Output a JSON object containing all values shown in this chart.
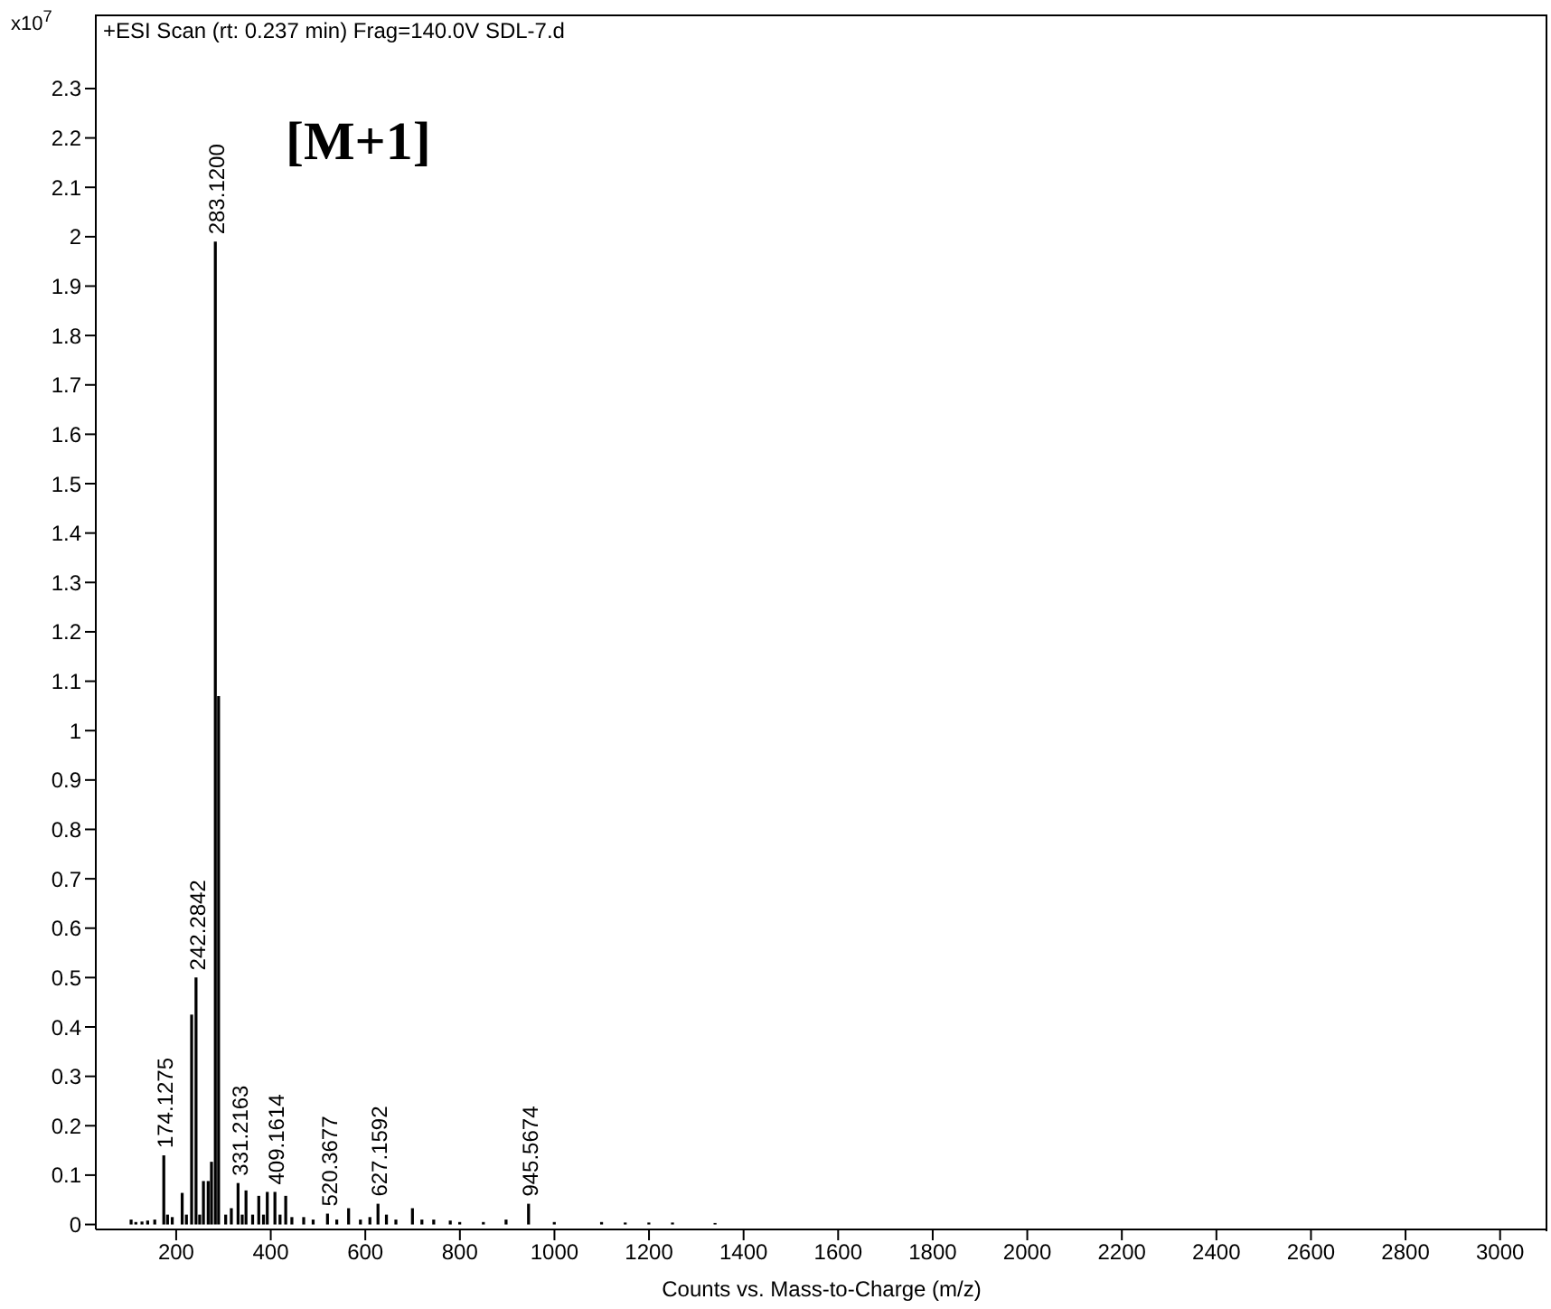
{
  "chart_data": {
    "type": "bar",
    "title": "+ESI Scan (rt: 0.237 min) Frag=140.0V SDL-7.d",
    "xlabel": "Counts vs. Mass-to-Charge (m/z)",
    "ylabel": "x10$^{7}$",
    "annotations": [
      "[M+1]",
      {
        "text": "174.1275",
        "x": 174.1275,
        "y": 0.14
      },
      {
        "text": "242.2842",
        "x": 242.2842,
        "y": 0.5
      },
      {
        "text": "283.1200",
        "x": 283.12,
        "y": 1.99
      },
      {
        "text": "331.2163",
        "x": 331.2163,
        "y": 0.084
      },
      {
        "text": "409.1614",
        "x": 409.1614,
        "y": 0.066
      },
      {
        "text": "520.3677",
        "x": 520.3677,
        "y": 0.022
      },
      {
        "text": "627.1592",
        "x": 627.1592,
        "y": 0.042
      },
      {
        "text": "945.5674",
        "x": 945.5674,
        "y": 0.042
      }
    ],
    "x": [
      105,
      115,
      128,
      140,
      155,
      174.1275,
      182,
      192,
      213,
      222,
      233,
      242.2842,
      250,
      258,
      268,
      275,
      283.12,
      290,
      305,
      317,
      331.2163,
      340,
      348,
      362,
      375,
      385,
      393,
      409.1614,
      420,
      432,
      445,
      470,
      490,
      520.3677,
      540,
      565,
      590,
      610,
      627.1592,
      645,
      665,
      700,
      720,
      745,
      780,
      800,
      850,
      898,
      945.5674,
      1000,
      1100,
      1150,
      1200,
      1250,
      1340
    ],
    "values": [
      0.01,
      0.005,
      0.006,
      0.008,
      0.01,
      0.14,
      0.02,
      0.015,
      0.064,
      0.02,
      0.425,
      0.5,
      0.02,
      0.088,
      0.088,
      0.127,
      1.99,
      1.07,
      0.02,
      0.033,
      0.084,
      0.02,
      0.069,
      0.02,
      0.058,
      0.02,
      0.066,
      0.066,
      0.02,
      0.058,
      0.015,
      0.015,
      0.01,
      0.022,
      0.01,
      0.033,
      0.01,
      0.015,
      0.042,
      0.02,
      0.01,
      0.033,
      0.01,
      0.01,
      0.008,
      0.005,
      0.005,
      0.01,
      0.042,
      0.005,
      0.005,
      0.004,
      0.004,
      0.004,
      0.003
    ],
    "color": "#000000",
    "xlim": [
      30,
      3100
    ],
    "xticks": [
      200,
      400,
      600,
      800,
      1000,
      1200,
      1400,
      1600,
      1800,
      2000,
      2200,
      2400,
      2600,
      2800,
      3000
    ],
    "ylim": [
      -0.01,
      2.45
    ],
    "yticks": [
      0,
      0.1,
      0.2,
      0.3,
      0.4,
      0.5,
      0.6,
      0.7,
      0.8,
      0.9,
      1,
      1.1,
      1.2,
      1.3,
      1.4,
      1.5,
      1.6,
      1.7,
      1.8,
      1.9,
      2,
      2.1,
      2.2,
      2.3
    ]
  }
}
